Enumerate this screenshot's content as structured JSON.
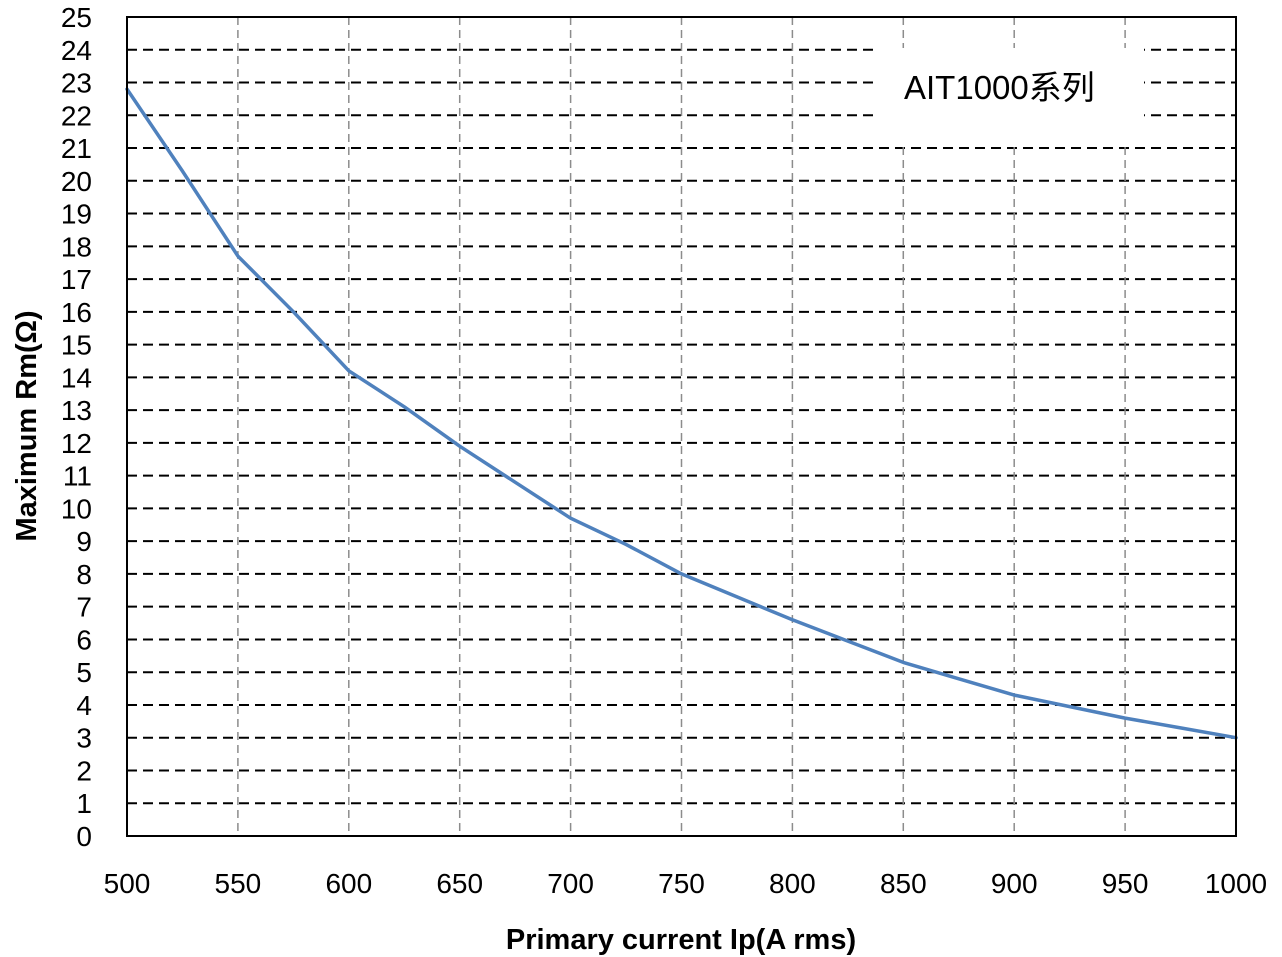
{
  "chart_data": {
    "type": "line",
    "xlabel": "Primary current Ip(A rms)",
    "ylabel": "Maximum Rm(Ω)",
    "xlim": [
      500,
      1000
    ],
    "ylim": [
      0,
      25
    ],
    "x_ticks": [
      500,
      550,
      600,
      650,
      700,
      750,
      800,
      850,
      900,
      950,
      1000
    ],
    "y_ticks": [
      0,
      1,
      2,
      3,
      4,
      5,
      6,
      7,
      8,
      9,
      10,
      11,
      12,
      13,
      14,
      15,
      16,
      17,
      18,
      19,
      20,
      21,
      22,
      23,
      24,
      25
    ],
    "grid": true,
    "grid_style": "dashed",
    "annotation": "AIT1000系列",
    "line_color": "#4f81bd",
    "series": [
      {
        "x": [
          500,
          525,
          550,
          575,
          600,
          625,
          650,
          675,
          700,
          725,
          750,
          775,
          800,
          825,
          850,
          875,
          900,
          925,
          950,
          975,
          1000
        ],
        "values": [
          22.8,
          20.3,
          17.7,
          16.0,
          14.2,
          13.1,
          11.9,
          10.8,
          9.7,
          8.9,
          8.0,
          7.3,
          6.6,
          5.95,
          5.3,
          4.8,
          4.3,
          3.95,
          3.6,
          3.3,
          3.0
        ]
      }
    ]
  }
}
